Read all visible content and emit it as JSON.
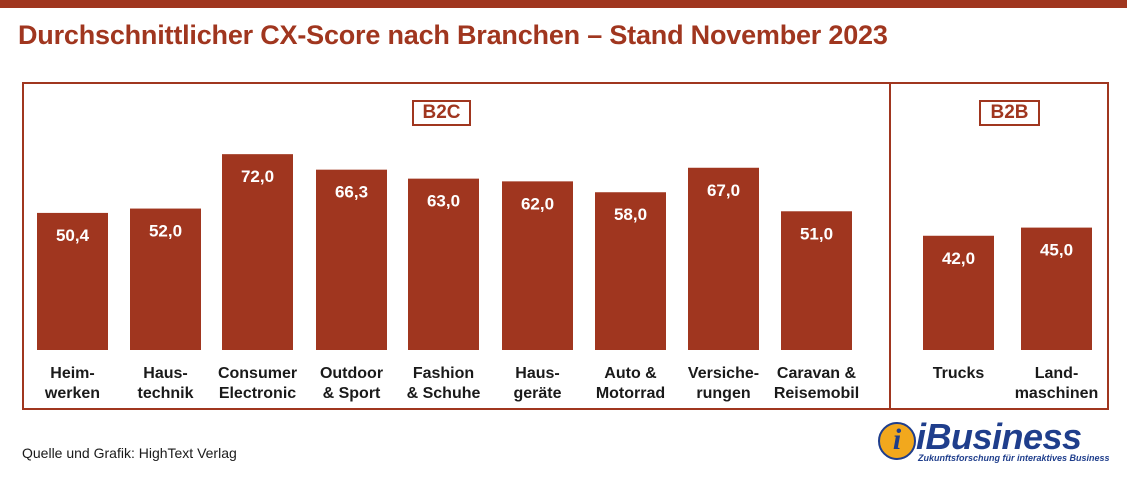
{
  "page": {
    "title": "Durchschnittlicher CX-Score nach Branchen – Stand November 2023",
    "source": "Quelle und Grafik: HighText Verlag"
  },
  "logo": {
    "mark": "i",
    "wordmark": "iBusiness",
    "tagline": "Zukunftsforschung für interaktives Business"
  },
  "colors": {
    "bar": "#a0361f",
    "accent": "#a0361f",
    "logo_blue": "#1f3e8c",
    "logo_orange": "#f2a81d"
  },
  "chart_data": {
    "type": "bar",
    "title": "Durchschnittlicher CX-Score nach Branchen – Stand November 2023",
    "ylim": [
      0,
      80
    ],
    "grid": false,
    "groups": [
      {
        "name": "B2C",
        "categories": [
          [
            "Heim-",
            "werken"
          ],
          [
            "Haus-",
            "technik"
          ],
          [
            "Consumer",
            "Electronic"
          ],
          [
            "Outdoor",
            "& Sport"
          ],
          [
            "Fashion",
            "& Schuhe"
          ],
          [
            "Haus-",
            "geräte"
          ],
          [
            "Auto &",
            "Motorrad"
          ],
          [
            "Versiche-",
            "rungen"
          ],
          [
            "Caravan &",
            "Reisemobil"
          ]
        ],
        "values": [
          50.4,
          52.0,
          72.0,
          66.3,
          63.0,
          62.0,
          58.0,
          67.0,
          51.0
        ],
        "value_labels": [
          "50,4",
          "52,0",
          "72,0",
          "66,3",
          "63,0",
          "62,0",
          "58,0",
          "67,0",
          "51,0"
        ]
      },
      {
        "name": "B2B",
        "categories": [
          [
            "Trucks"
          ],
          [
            "Land-",
            "maschinen"
          ]
        ],
        "values": [
          42.0,
          45.0
        ],
        "value_labels": [
          "42,0",
          "45,0"
        ]
      }
    ]
  }
}
